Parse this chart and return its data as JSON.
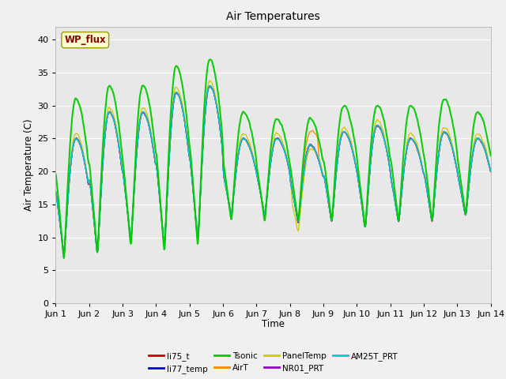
{
  "title": "Air Temperatures",
  "xlabel": "Time",
  "ylabel": "Air Temperature (C)",
  "ylim": [
    0,
    42
  ],
  "yticks": [
    0,
    5,
    10,
    15,
    20,
    25,
    30,
    35,
    40
  ],
  "annotation_text": "WP_flux",
  "legend_entries": [
    "li75_t",
    "li77_temp",
    "Tsonic",
    "AirT",
    "PanelTemp",
    "NR01_PRT",
    "AM25T_PRT"
  ],
  "line_colors": [
    "#cc0000",
    "#0000dd",
    "#00cc00",
    "#ff8800",
    "#cccc00",
    "#9900cc",
    "#00cccc"
  ],
  "n_days": 13,
  "samples_per_day": 144
}
